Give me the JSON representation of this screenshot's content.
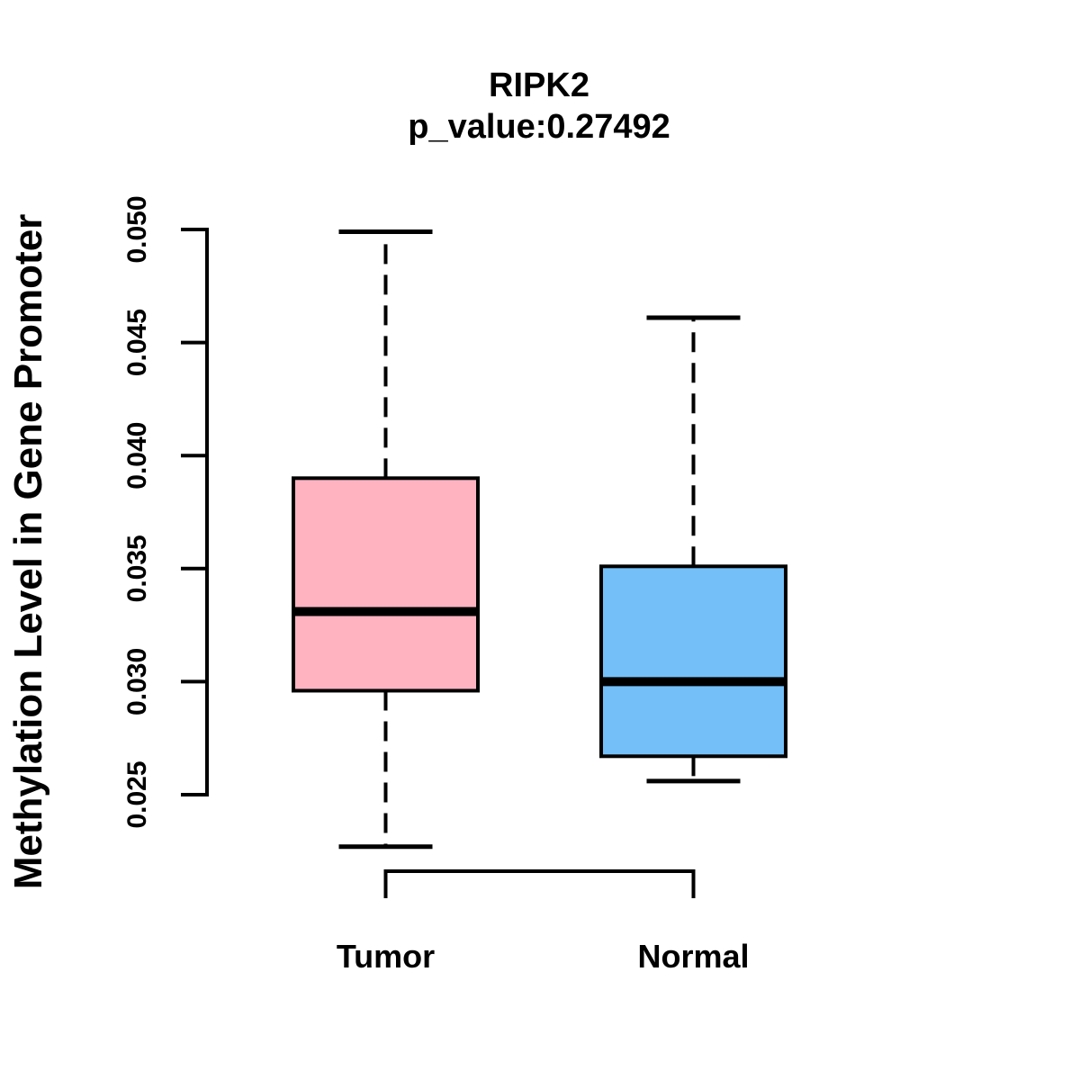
{
  "page": {
    "background": "#FFFFFF",
    "text_color": "#000000"
  },
  "chart_data": {
    "type": "boxplot",
    "title": "RIPK2",
    "subtitle": "p_value:0.27492",
    "ylabel": "Methylation Level in Gene Promoter",
    "xlabel": "",
    "categories": [
      "Tumor",
      "Normal"
    ],
    "y_tick_labels": [
      "0.025",
      "0.030",
      "0.035",
      "0.040",
      "0.045",
      "0.050"
    ],
    "y_tick_values": [
      0.025,
      0.03,
      0.035,
      0.04,
      0.045,
      0.05
    ],
    "y_axis_range": [
      0.025,
      0.05
    ],
    "grid": false,
    "legend_position": "none",
    "series": [
      {
        "name": "Tumor",
        "color": "#FFB3C1",
        "lower_whisker": 0.0227,
        "q1": 0.0296,
        "median": 0.0331,
        "q3": 0.039,
        "upper_whisker": 0.0499
      },
      {
        "name": "Normal",
        "color": "#74BFF7",
        "lower_whisker": 0.0256,
        "q1": 0.0267,
        "median": 0.03,
        "q3": 0.0351,
        "upper_whisker": 0.0461
      }
    ],
    "style_colors": {
      "box_outline": "#000000",
      "median_line": "#000000",
      "axis": "#000000"
    }
  }
}
